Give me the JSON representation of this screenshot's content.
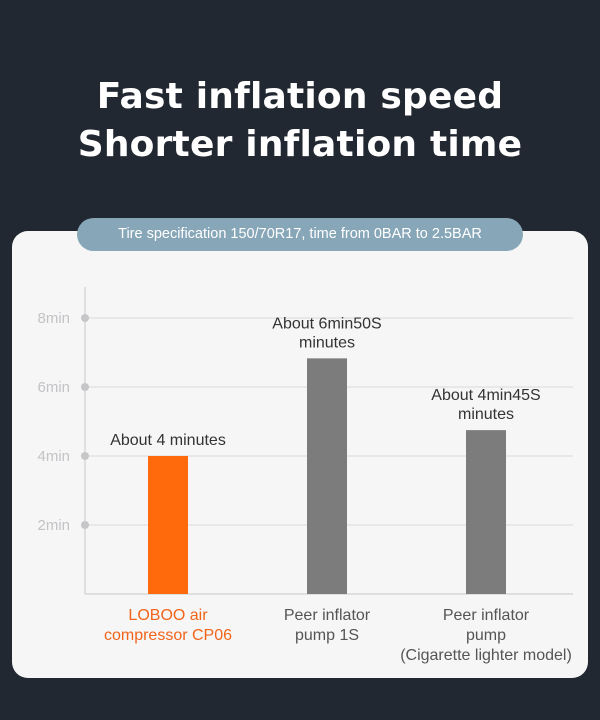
{
  "headline": {
    "line1": "Fast inflation speed",
    "line2": "Shorter inflation time"
  },
  "subtitle": "Tire specification 150/70R17, time from 0BAR to 2.5BAR",
  "colors": {
    "background": "#222831",
    "card": "#f6f6f7",
    "highlight_bar": "#ff6a0c",
    "peer_bar": "#7c7c7c",
    "highlight_label": "#f2641a",
    "pill": "#87a6b8"
  },
  "chart_data": {
    "type": "bar",
    "categories": [
      "LOBOO air compressor CP06",
      "Peer inflator pump 1S",
      "Peer inflator pump (Cigarette lighter model)"
    ],
    "category_label_lines": [
      [
        "LOBOO air",
        "compressor CP06"
      ],
      [
        "Peer inflator",
        "pump 1S"
      ],
      [
        "Peer inflator",
        "pump",
        "(Cigarette lighter model)"
      ]
    ],
    "values": [
      4.0,
      6.83,
      4.75
    ],
    "value_units": "min",
    "data_labels": [
      [
        "About 4 minutes"
      ],
      [
        "About 6min50S",
        "minutes"
      ],
      [
        "About 4min45S",
        "minutes"
      ]
    ],
    "highlight_index": 0,
    "y_ticks": [
      2,
      4,
      6,
      8
    ],
    "y_tick_labels": [
      "2min",
      "4min",
      "6min",
      "8min"
    ],
    "ylim": [
      0,
      8
    ],
    "grid": true,
    "legend": "none"
  }
}
